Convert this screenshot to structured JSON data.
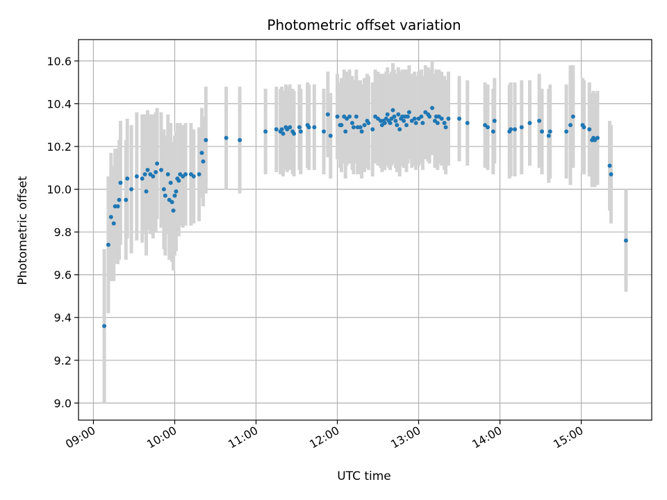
{
  "chart_data": {
    "type": "scatter",
    "title": "Photometric offset variation",
    "xlabel": "UTC time",
    "ylabel": "Photometric offset",
    "xlim": [
      "08:49",
      "15:52"
    ],
    "ylim": [
      8.92,
      10.7
    ],
    "x_ticks": [
      "09:00",
      "10:00",
      "11:00",
      "12:00",
      "13:00",
      "14:00",
      "15:00"
    ],
    "y_ticks": [
      "9.0",
      "9.2",
      "9.4",
      "9.6",
      "9.8",
      "10.0",
      "10.2",
      "10.4",
      "10.6"
    ],
    "grid": true,
    "colors": {
      "point": "#1f77b4",
      "errorbar": "#d3d3d3",
      "grid": "#b0b0b0"
    },
    "series": [
      {
        "points": [
          [
            "09:08",
            9.36,
            0.36
          ],
          [
            "09:11",
            9.74,
            0.32
          ],
          [
            "09:13",
            9.87,
            0.3
          ],
          [
            "09:15",
            9.84,
            0.27
          ],
          [
            "09:16",
            9.92,
            0.27
          ],
          [
            "09:18",
            9.92,
            0.27
          ],
          [
            "09:19",
            9.95,
            0.28
          ],
          [
            "09:20",
            10.03,
            0.29
          ],
          [
            "09:24",
            9.95,
            0.28
          ],
          [
            "09:25",
            10.05,
            0.28
          ],
          [
            "09:28",
            10.0,
            0.3
          ],
          [
            "09:32",
            10.06,
            0.3
          ],
          [
            "09:36",
            10.05,
            0.3
          ],
          [
            "09:38",
            10.07,
            0.28
          ],
          [
            "09:39",
            9.99,
            0.3
          ],
          [
            "09:40",
            10.09,
            0.28
          ],
          [
            "09:42",
            10.07,
            0.28
          ],
          [
            "09:44",
            10.06,
            0.29
          ],
          [
            "09:46",
            10.08,
            0.28
          ],
          [
            "09:47",
            10.12,
            0.26
          ],
          [
            "09:50",
            10.09,
            0.27
          ],
          [
            "09:52",
            10.0,
            0.28
          ],
          [
            "09:53",
            9.97,
            0.28
          ],
          [
            "09:55",
            10.07,
            0.28
          ],
          [
            "09:56",
            9.95,
            0.28
          ],
          [
            "09:57",
            10.03,
            0.28
          ],
          [
            "09:58",
            9.94,
            0.28
          ],
          [
            "09:59",
            9.9,
            0.28
          ],
          [
            "10:00",
            9.97,
            0.28
          ],
          [
            "10:01",
            9.99,
            0.28
          ],
          [
            "10:02",
            10.05,
            0.26
          ],
          [
            "10:03",
            10.04,
            0.26
          ],
          [
            "10:04",
            10.07,
            0.24
          ],
          [
            "10:06",
            10.06,
            0.24
          ],
          [
            "10:08",
            10.07,
            0.24
          ],
          [
            "10:12",
            10.07,
            0.24
          ],
          [
            "10:14",
            10.06,
            0.22
          ],
          [
            "10:18",
            10.07,
            0.22
          ],
          [
            "10:20",
            10.17,
            0.21
          ],
          [
            "10:21",
            10.13,
            0.21
          ],
          [
            "10:23",
            10.23,
            0.25
          ],
          [
            "10:38",
            10.24,
            0.24
          ],
          [
            "10:48",
            10.23,
            0.25
          ],
          [
            "11:07",
            10.27,
            0.2
          ],
          [
            "11:15",
            10.28,
            0.2
          ],
          [
            "11:18",
            10.27,
            0.2
          ],
          [
            "11:19",
            10.28,
            0.2
          ],
          [
            "11:20",
            10.26,
            0.2
          ],
          [
            "11:22",
            10.29,
            0.2
          ],
          [
            "11:23",
            10.28,
            0.2
          ],
          [
            "11:25",
            10.29,
            0.2
          ],
          [
            "11:27",
            10.27,
            0.2
          ],
          [
            "11:28",
            10.26,
            0.2
          ],
          [
            "11:32",
            10.29,
            0.2
          ],
          [
            "11:33",
            10.27,
            0.2
          ],
          [
            "11:38",
            10.3,
            0.2
          ],
          [
            "11:39",
            10.29,
            0.2
          ],
          [
            "11:43",
            10.29,
            0.2
          ],
          [
            "11:50",
            10.27,
            0.2
          ],
          [
            "11:53",
            10.35,
            0.2
          ],
          [
            "11:55",
            10.25,
            0.2
          ],
          [
            "12:00",
            10.34,
            0.2
          ],
          [
            "12:02",
            10.3,
            0.2
          ],
          [
            "12:03",
            10.3,
            0.22
          ],
          [
            "12:05",
            10.34,
            0.22
          ],
          [
            "12:06",
            10.27,
            0.22
          ],
          [
            "12:07",
            10.33,
            0.22
          ],
          [
            "12:09",
            10.34,
            0.22
          ],
          [
            "12:11",
            10.31,
            0.22
          ],
          [
            "12:12",
            10.29,
            0.22
          ],
          [
            "12:14",
            10.34,
            0.22
          ],
          [
            "12:15",
            10.29,
            0.22
          ],
          [
            "12:17",
            10.29,
            0.22
          ],
          [
            "12:18",
            10.27,
            0.22
          ],
          [
            "12:20",
            10.3,
            0.22
          ],
          [
            "12:22",
            10.32,
            0.22
          ],
          [
            "12:23",
            10.31,
            0.22
          ],
          [
            "12:26",
            10.28,
            0.22
          ],
          [
            "12:28",
            10.34,
            0.22
          ],
          [
            "12:30",
            10.33,
            0.22
          ],
          [
            "12:32",
            10.32,
            0.22
          ],
          [
            "12:33",
            10.3,
            0.22
          ],
          [
            "12:34",
            10.32,
            0.22
          ],
          [
            "12:35",
            10.31,
            0.22
          ],
          [
            "12:36",
            10.33,
            0.22
          ],
          [
            "12:37",
            10.35,
            0.22
          ],
          [
            "12:38",
            10.32,
            0.22
          ],
          [
            "12:39",
            10.31,
            0.22
          ],
          [
            "12:40",
            10.33,
            0.22
          ],
          [
            "12:41",
            10.37,
            0.22
          ],
          [
            "12:42",
            10.34,
            0.22
          ],
          [
            "12:43",
            10.32,
            0.22
          ],
          [
            "12:44",
            10.3,
            0.22
          ],
          [
            "12:45",
            10.35,
            0.22
          ],
          [
            "12:46",
            10.28,
            0.22
          ],
          [
            "12:47",
            10.33,
            0.22
          ],
          [
            "12:48",
            10.34,
            0.22
          ],
          [
            "12:49",
            10.32,
            0.22
          ],
          [
            "12:50",
            10.34,
            0.22
          ],
          [
            "12:51",
            10.3,
            0.22
          ],
          [
            "12:52",
            10.34,
            0.22
          ],
          [
            "12:53",
            10.36,
            0.22
          ],
          [
            "12:55",
            10.32,
            0.22
          ],
          [
            "12:57",
            10.33,
            0.22
          ],
          [
            "12:58",
            10.31,
            0.22
          ],
          [
            "13:00",
            10.33,
            0.22
          ],
          [
            "13:02",
            10.34,
            0.22
          ],
          [
            "13:03",
            10.31,
            0.22
          ],
          [
            "13:05",
            10.36,
            0.22
          ],
          [
            "13:07",
            10.35,
            0.22
          ],
          [
            "13:08",
            10.34,
            0.22
          ],
          [
            "13:10",
            10.38,
            0.22
          ],
          [
            "13:12",
            10.32,
            0.22
          ],
          [
            "13:13",
            10.34,
            0.22
          ],
          [
            "13:14",
            10.31,
            0.22
          ],
          [
            "13:15",
            10.34,
            0.22
          ],
          [
            "13:17",
            10.33,
            0.22
          ],
          [
            "13:19",
            10.31,
            0.22
          ],
          [
            "13:20",
            10.29,
            0.22
          ],
          [
            "13:22",
            10.33,
            0.22
          ],
          [
            "13:30",
            10.33,
            0.2
          ],
          [
            "13:36",
            10.31,
            0.2
          ],
          [
            "13:49",
            10.3,
            0.2
          ],
          [
            "13:51",
            10.29,
            0.2
          ],
          [
            "13:55",
            10.27,
            0.2
          ],
          [
            "13:56",
            10.32,
            0.2
          ],
          [
            "14:07",
            10.27,
            0.22
          ],
          [
            "14:08",
            10.28,
            0.22
          ],
          [
            "14:11",
            10.28,
            0.22
          ],
          [
            "14:16",
            10.29,
            0.22
          ],
          [
            "14:22",
            10.31,
            0.2
          ],
          [
            "14:29",
            10.32,
            0.22
          ],
          [
            "14:31",
            10.27,
            0.2
          ],
          [
            "14:36",
            10.25,
            0.22
          ],
          [
            "14:37",
            10.27,
            0.22
          ],
          [
            "14:49",
            10.27,
            0.22
          ],
          [
            "14:52",
            10.3,
            0.28
          ],
          [
            "14:54",
            10.34,
            0.24
          ],
          [
            "15:01",
            10.3,
            0.22
          ],
          [
            "15:02",
            10.29,
            0.22
          ],
          [
            "15:06",
            10.28,
            0.22
          ],
          [
            "15:08",
            10.23,
            0.22
          ],
          [
            "15:09",
            10.24,
            0.22
          ],
          [
            "15:10",
            10.23,
            0.22
          ],
          [
            "15:12",
            10.24,
            0.22
          ],
          [
            "15:21",
            10.11,
            0.21
          ],
          [
            "15:22",
            10.07,
            0.23
          ],
          [
            "15:33",
            9.76,
            0.24
          ]
        ]
      }
    ]
  }
}
